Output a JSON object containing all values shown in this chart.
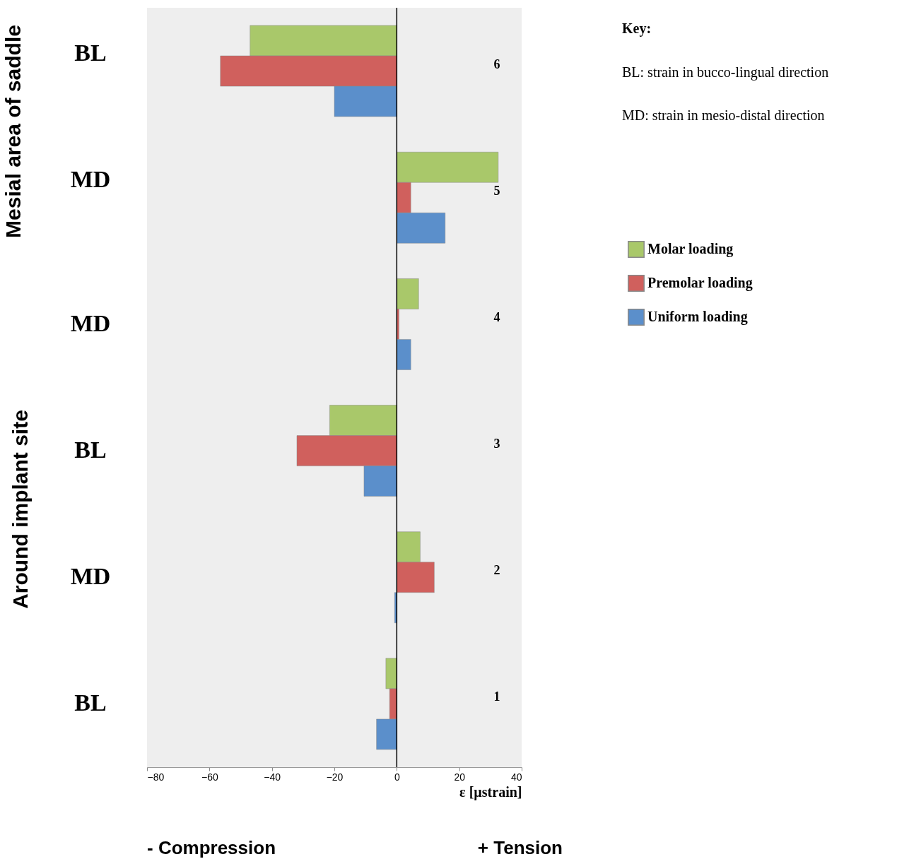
{
  "chart_data": {
    "type": "bar",
    "orientation": "horizontal",
    "xlabel": "ε [µstrain]",
    "categories": [
      "6",
      "5",
      "4",
      "3",
      "2",
      "1"
    ],
    "series": [
      {
        "name": "Molar loading",
        "color": "#a9c86a",
        "values": [
          -47,
          32.5,
          7,
          -21.5,
          7.5,
          -3.5
        ]
      },
      {
        "name": "Premolar loading",
        "color": "#d0605d",
        "values": [
          -56.5,
          4.5,
          0.7,
          -32,
          12,
          -2.3
        ]
      },
      {
        "name": "Uniform loading",
        "color": "#5b8fcb",
        "values": [
          -20,
          15.5,
          4.5,
          -10.5,
          -0.7,
          -6.5
        ]
      }
    ],
    "xlim": [
      -80,
      40
    ],
    "xticks": [
      -80,
      -60,
      -40,
      -20,
      0,
      20,
      40
    ],
    "grid": false,
    "legend": "right",
    "ref_lines": [
      {
        "axis": "x",
        "value": 0,
        "label": null
      }
    ],
    "annotations": [
      "BL",
      "MD",
      "MD",
      "BL",
      "MD",
      "BL",
      "Mesial area of saddle",
      "Around implant site",
      "Key:",
      "BL: strain in bucco-lingual direction",
      "MD: strain in mesio-distal direction",
      "- Compression",
      "+ Tension"
    ]
  }
}
